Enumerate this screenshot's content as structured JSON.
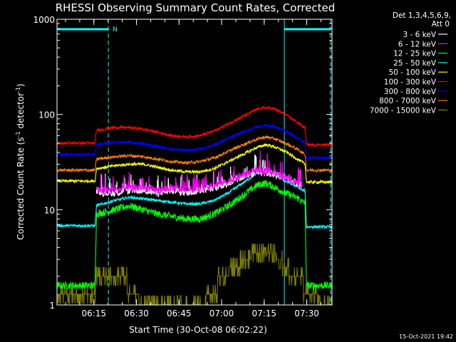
{
  "chart_data": {
    "type": "line",
    "title": "RHESSI Observing Summary Count Rates, Corrected",
    "xlabel": "Start Time (30-Oct-08 06:02:22)",
    "ylabel_main": "Corrected Count Rate (s",
    "ylabel_sup1": "-1",
    "ylabel_mid": " detector",
    "ylabel_sup2": "-1",
    "ylabel_end": ")",
    "y_scale": "log",
    "ylim": [
      1,
      1000
    ],
    "xlim_minutes": [
      -0.4,
      96.5
    ],
    "y_ticks": [
      {
        "v": 1,
        "label": "1"
      },
      {
        "v": 10,
        "label": "10"
      },
      {
        "v": 100,
        "label": "100"
      },
      {
        "v": 1000,
        "label": "1000"
      }
    ],
    "x_ticks": [
      {
        "label": "06:15",
        "t": 12.6
      },
      {
        "label": "06:30",
        "t": 27.6
      },
      {
        "label": "06:45",
        "t": 42.6
      },
      {
        "label": "07:00",
        "t": 57.6
      },
      {
        "label": "07:15",
        "t": 72.6
      },
      {
        "label": "07:30",
        "t": 87.6
      }
    ],
    "legend_header1": "Det 1,3,4,5,6,9,",
    "legend_header2": "Att 0",
    "legend_position": "right",
    "series": [
      {
        "name": "3 - 6 keV",
        "color": "#ffffff",
        "points": [
          [
            13.5,
            16
          ],
          [
            16,
            15
          ],
          [
            20,
            15
          ],
          [
            25,
            16
          ],
          [
            30,
            16
          ],
          [
            35,
            15
          ],
          [
            40,
            16
          ],
          [
            45,
            15
          ],
          [
            50,
            16
          ],
          [
            55,
            17
          ],
          [
            60,
            19
          ],
          [
            65,
            22
          ],
          [
            70,
            25
          ],
          [
            75,
            24
          ],
          [
            80,
            22
          ],
          [
            83,
            20
          ],
          [
            86,
            18
          ]
        ]
      },
      {
        "name": "6 - 12 keV",
        "color": "#ff00ff",
        "points": [
          [
            13.5,
            16
          ],
          [
            16,
            16
          ],
          [
            20,
            16
          ],
          [
            25,
            17
          ],
          [
            30,
            17
          ],
          [
            35,
            16
          ],
          [
            40,
            17
          ],
          [
            45,
            16
          ],
          [
            50,
            17
          ],
          [
            55,
            18
          ],
          [
            60,
            20
          ],
          [
            65,
            23
          ],
          [
            70,
            26
          ],
          [
            75,
            25
          ],
          [
            80,
            22
          ],
          [
            83,
            20
          ],
          [
            86,
            18
          ]
        ]
      },
      {
        "name": "12 - 25 keV",
        "color": "#00ff00",
        "points": [
          [
            -0.4,
            1.6
          ],
          [
            13,
            1.6
          ],
          [
            13.5,
            9
          ],
          [
            20,
            10
          ],
          [
            25,
            11
          ],
          [
            30,
            10
          ],
          [
            35,
            9
          ],
          [
            40,
            8.5
          ],
          [
            45,
            8
          ],
          [
            50,
            8
          ],
          [
            55,
            9
          ],
          [
            60,
            11
          ],
          [
            65,
            14
          ],
          [
            70,
            18
          ],
          [
            73,
            19
          ],
          [
            75,
            18
          ],
          [
            80,
            15
          ],
          [
            85,
            13
          ],
          [
            86,
            12
          ],
          [
            87,
            12
          ],
          [
            87.5,
            1.6
          ],
          [
            96.5,
            1.6
          ]
        ]
      },
      {
        "name": "25 - 50 keV",
        "color": "#00ffff",
        "points": [
          [
            -0.4,
            6.8
          ],
          [
            13,
            6.8
          ],
          [
            13.5,
            11
          ],
          [
            20,
            12.5
          ],
          [
            25,
            13.5
          ],
          [
            30,
            13
          ],
          [
            35,
            12.5
          ],
          [
            40,
            12
          ],
          [
            45,
            11.5
          ],
          [
            50,
            11.5
          ],
          [
            55,
            12.5
          ],
          [
            60,
            15
          ],
          [
            65,
            19
          ],
          [
            70,
            24
          ],
          [
            73,
            25
          ],
          [
            76,
            24
          ],
          [
            80,
            20
          ],
          [
            85,
            17
          ],
          [
            86,
            16
          ],
          [
            87,
            16
          ],
          [
            87.5,
            6.6
          ],
          [
            96.5,
            6.6
          ]
        ]
      },
      {
        "name": "50 - 100 keV",
        "color": "#ffff00",
        "points": [
          [
            -0.4,
            20
          ],
          [
            13,
            20
          ],
          [
            13.5,
            27
          ],
          [
            20,
            29
          ],
          [
            25,
            30
          ],
          [
            30,
            30
          ],
          [
            35,
            28
          ],
          [
            40,
            26
          ],
          [
            45,
            25
          ],
          [
            50,
            25
          ],
          [
            55,
            27
          ],
          [
            60,
            32
          ],
          [
            65,
            38
          ],
          [
            70,
            45
          ],
          [
            73,
            48
          ],
          [
            76,
            46
          ],
          [
            80,
            41
          ],
          [
            85,
            33
          ],
          [
            87,
            30
          ],
          [
            87.5,
            19.5
          ],
          [
            96.5,
            19.5
          ]
        ]
      },
      {
        "name": "100 - 300 keV",
        "color": "#ff0000",
        "points": [
          [
            -0.4,
            50
          ],
          [
            13,
            50
          ],
          [
            13.5,
            68
          ],
          [
            20,
            73
          ],
          [
            25,
            73
          ],
          [
            30,
            70
          ],
          [
            35,
            65
          ],
          [
            40,
            60
          ],
          [
            45,
            58
          ],
          [
            50,
            60
          ],
          [
            55,
            67
          ],
          [
            60,
            80
          ],
          [
            65,
            95
          ],
          [
            70,
            113
          ],
          [
            73,
            118
          ],
          [
            76,
            115
          ],
          [
            80,
            100
          ],
          [
            85,
            80
          ],
          [
            87,
            72
          ],
          [
            87.5,
            48
          ],
          [
            96.5,
            48
          ]
        ]
      },
      {
        "name": "300 - 800 keV",
        "color": "#0000ff",
        "points": [
          [
            -0.4,
            38
          ],
          [
            13,
            38
          ],
          [
            13.5,
            48
          ],
          [
            20,
            51
          ],
          [
            25,
            51
          ],
          [
            30,
            49
          ],
          [
            35,
            46
          ],
          [
            40,
            43
          ],
          [
            45,
            42
          ],
          [
            50,
            43
          ],
          [
            55,
            48
          ],
          [
            60,
            56
          ],
          [
            65,
            65
          ],
          [
            70,
            74
          ],
          [
            73,
            77
          ],
          [
            76,
            75
          ],
          [
            80,
            67
          ],
          [
            85,
            55
          ],
          [
            87,
            50
          ],
          [
            87.5,
            35
          ],
          [
            96.5,
            35
          ]
        ]
      },
      {
        "name": "800 - 7000 keV",
        "color": "#ff8000",
        "points": [
          [
            -0.4,
            26
          ],
          [
            13,
            26
          ],
          [
            13.5,
            34
          ],
          [
            20,
            36
          ],
          [
            25,
            37
          ],
          [
            30,
            36
          ],
          [
            35,
            34
          ],
          [
            40,
            32
          ],
          [
            45,
            31
          ],
          [
            50,
            32
          ],
          [
            55,
            35
          ],
          [
            60,
            41
          ],
          [
            65,
            48
          ],
          [
            70,
            55
          ],
          [
            73,
            58
          ],
          [
            76,
            56
          ],
          [
            80,
            50
          ],
          [
            85,
            42
          ],
          [
            87,
            38
          ],
          [
            87.5,
            26
          ],
          [
            96.5,
            26
          ]
        ]
      },
      {
        "name": "7000 - 15000 keV",
        "color": "#808000",
        "points": [
          [
            -0.4,
            1.5
          ],
          [
            13,
            1.5
          ],
          [
            13.5,
            2
          ],
          [
            20,
            2
          ],
          [
            25,
            1.6
          ],
          [
            30,
            1
          ],
          [
            50,
            1
          ],
          [
            54,
            1.3
          ],
          [
            58,
            2
          ],
          [
            62,
            2.5
          ],
          [
            66,
            3
          ],
          [
            70,
            3.5
          ],
          [
            73,
            3.8
          ],
          [
            76,
            3.5
          ],
          [
            78,
            3
          ],
          [
            80,
            2.5
          ],
          [
            83,
            2
          ],
          [
            86,
            1.8
          ],
          [
            87.5,
            1.3
          ],
          [
            96.5,
            1
          ]
        ]
      }
    ],
    "attenuator_markers_minutes": [
      17.7,
      79.7,
      96.0
    ],
    "saa_bars": [
      {
        "from": -0.4,
        "to": 17.7
      },
      {
        "from": 79.7,
        "to": 96.0
      }
    ],
    "night_label": "N"
  },
  "footer": {
    "timestamp": "15-Oct-2021 19:42"
  }
}
